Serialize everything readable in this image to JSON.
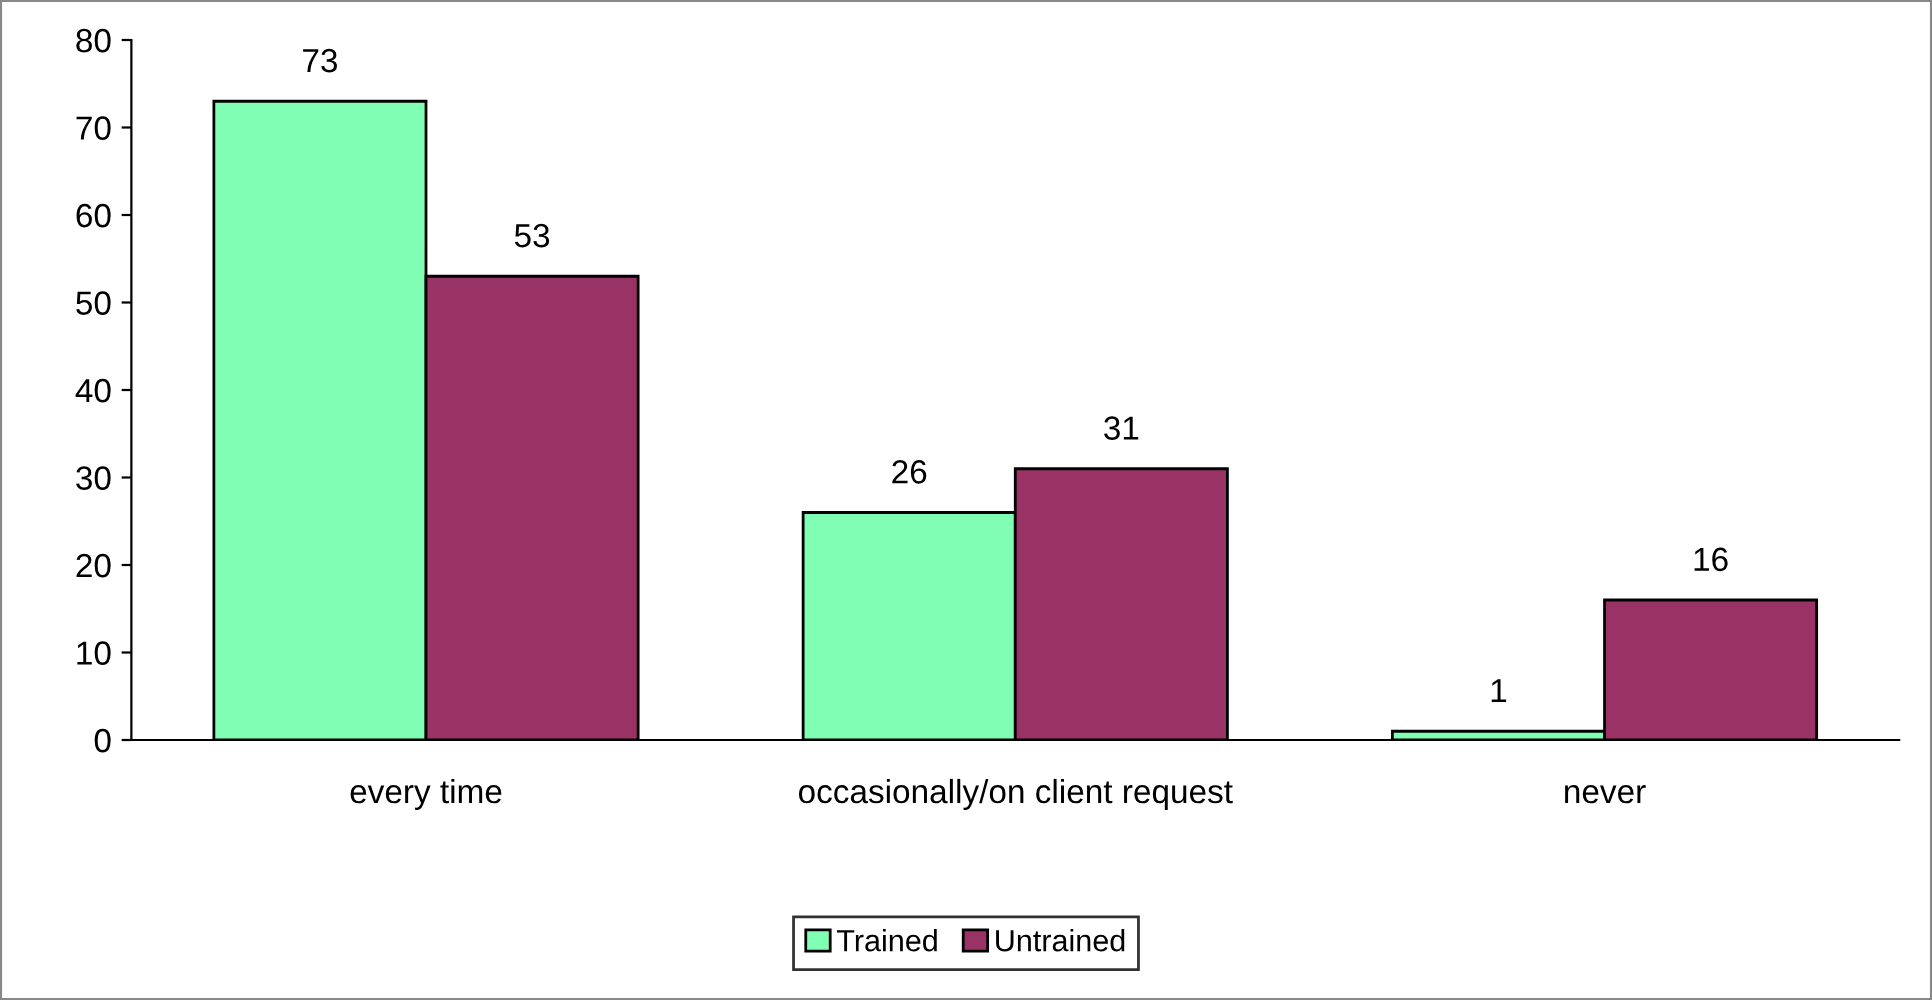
{
  "chart_data": {
    "type": "bar",
    "categories": [
      "every time",
      "occasionally/on client request",
      "never"
    ],
    "series": [
      {
        "name": "Trained",
        "color": "#80ffb4",
        "values": [
          73,
          26,
          1
        ]
      },
      {
        "name": "Untrained",
        "color": "#993366",
        "values": [
          53,
          31,
          16
        ]
      }
    ],
    "ylim": [
      0,
      80
    ],
    "yticks": [
      0,
      10,
      20,
      30,
      40,
      50,
      60,
      70,
      80
    ],
    "data_labels": true,
    "legend": "bottom",
    "grid": false
  }
}
